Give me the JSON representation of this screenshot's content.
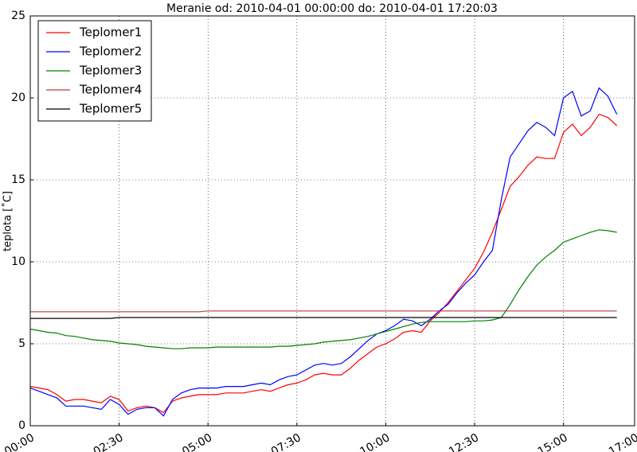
{
  "chart_data": {
    "type": "line",
    "title": "Meranie od: 2010-04-01 00:00:00 do: 2010-04-01 17:20:03",
    "y_label": "teplota [˚C]",
    "x": [
      0,
      0.25,
      0.5,
      0.75,
      1,
      1.25,
      1.5,
      1.75,
      2,
      2.25,
      2.5,
      2.75,
      3,
      3.25,
      3.5,
      3.75,
      4,
      4.25,
      4.5,
      4.75,
      5,
      5.25,
      5.5,
      5.75,
      6,
      6.25,
      6.5,
      6.75,
      7,
      7.25,
      7.5,
      7.75,
      8,
      8.25,
      8.5,
      8.75,
      9,
      9.25,
      9.5,
      9.75,
      10,
      10.25,
      10.5,
      10.75,
      11,
      11.25,
      11.5,
      11.75,
      12,
      12.25,
      12.5,
      12.75,
      13,
      13.25,
      13.5,
      13.75,
      14,
      14.25,
      14.5,
      14.75,
      15,
      15.25,
      15.5,
      15.75,
      16,
      16.25,
      16.5
    ],
    "series": [
      {
        "name": "Teplomer1",
        "color": "#ff0000",
        "values": [
          2.4,
          2.3,
          2.2,
          1.9,
          1.5,
          1.6,
          1.6,
          1.5,
          1.4,
          1.8,
          1.6,
          0.9,
          1.1,
          1.2,
          1.1,
          0.8,
          1.5,
          1.7,
          1.8,
          1.9,
          1.9,
          1.9,
          2.0,
          2.0,
          2.0,
          2.1,
          2.2,
          2.1,
          2.3,
          2.5,
          2.6,
          2.8,
          3.1,
          3.2,
          3.1,
          3.1,
          3.5,
          4.0,
          4.4,
          4.8,
          5.0,
          5.3,
          5.7,
          5.8,
          5.7,
          6.4,
          6.9,
          7.5,
          8.2,
          8.9,
          9.6,
          10.6,
          11.8,
          13.2,
          14.6,
          15.2,
          15.9,
          16.4,
          16.3,
          16.3,
          17.9,
          18.4,
          17.7,
          18.2,
          19.0,
          18.8,
          18.3
        ]
      },
      {
        "name": "Teplomer2",
        "color": "#0000ff",
        "values": [
          2.3,
          2.1,
          1.9,
          1.7,
          1.2,
          1.2,
          1.2,
          1.1,
          1.0,
          1.6,
          1.3,
          0.7,
          1.0,
          1.1,
          1.1,
          0.6,
          1.6,
          2.0,
          2.2,
          2.3,
          2.3,
          2.3,
          2.4,
          2.4,
          2.4,
          2.5,
          2.6,
          2.5,
          2.8,
          3.0,
          3.1,
          3.4,
          3.7,
          3.8,
          3.7,
          3.8,
          4.2,
          4.7,
          5.2,
          5.6,
          5.8,
          6.1,
          6.5,
          6.4,
          6.1,
          6.5,
          7.0,
          7.4,
          8.1,
          8.7,
          9.2,
          10.0,
          10.7,
          13.8,
          16.4,
          17.2,
          18.0,
          18.5,
          18.2,
          17.7,
          20.0,
          20.4,
          18.9,
          19.2,
          20.6,
          20.1,
          19.0
        ]
      },
      {
        "name": "Teplomer3",
        "color": "#008000",
        "values": [
          5.9,
          5.8,
          5.7,
          5.65,
          5.5,
          5.45,
          5.35,
          5.25,
          5.2,
          5.15,
          5.05,
          5.0,
          4.95,
          4.85,
          4.8,
          4.75,
          4.7,
          4.7,
          4.75,
          4.75,
          4.75,
          4.8,
          4.8,
          4.8,
          4.8,
          4.8,
          4.8,
          4.8,
          4.85,
          4.85,
          4.9,
          4.95,
          5.0,
          5.1,
          5.15,
          5.2,
          5.25,
          5.35,
          5.45,
          5.6,
          5.75,
          5.9,
          6.05,
          6.2,
          6.3,
          6.35,
          6.35,
          6.35,
          6.35,
          6.35,
          6.4,
          6.4,
          6.45,
          6.6,
          7.4,
          8.3,
          9.1,
          9.8,
          10.3,
          10.7,
          11.2,
          11.4,
          11.6,
          11.8,
          11.95,
          11.9,
          11.8
        ]
      },
      {
        "name": "Teplomer4",
        "color": "#bf3f3f",
        "values": [
          6.95,
          6.95,
          6.95,
          6.95,
          6.95,
          6.95,
          6.95,
          6.95,
          6.95,
          6.95,
          6.95,
          6.95,
          6.95,
          6.95,
          6.95,
          6.95,
          6.95,
          6.95,
          6.95,
          6.95,
          7.0,
          7.0,
          7.0,
          7.0,
          7.0,
          7.0,
          7.0,
          7.0,
          7.0,
          7.0,
          7.0,
          7.0,
          7.0,
          7.0,
          7.0,
          7.0,
          7.0,
          7.0,
          7.0,
          7.0,
          7.0,
          7.0,
          7.0,
          7.0,
          7.0,
          7.0,
          7.0,
          7.0,
          7.0,
          7.0,
          7.0,
          7.0,
          7.0,
          7.0,
          7.0,
          7.0,
          7.0,
          7.0,
          7.0,
          7.0,
          7.0,
          7.0,
          7.0,
          7.0,
          7.0,
          7.0,
          7.0
        ]
      },
      {
        "name": "Teplomer5",
        "color": "#000000",
        "values": [
          6.55,
          6.55,
          6.55,
          6.55,
          6.55,
          6.55,
          6.55,
          6.55,
          6.55,
          6.55,
          6.6,
          6.6,
          6.6,
          6.6,
          6.6,
          6.6,
          6.6,
          6.6,
          6.6,
          6.6,
          6.6,
          6.6,
          6.6,
          6.6,
          6.6,
          6.6,
          6.6,
          6.6,
          6.6,
          6.6,
          6.6,
          6.6,
          6.6,
          6.6,
          6.6,
          6.6,
          6.6,
          6.6,
          6.6,
          6.6,
          6.6,
          6.6,
          6.6,
          6.6,
          6.6,
          6.6,
          6.6,
          6.6,
          6.6,
          6.6,
          6.6,
          6.6,
          6.6,
          6.6,
          6.6,
          6.6,
          6.6,
          6.6,
          6.6,
          6.6,
          6.6,
          6.6,
          6.6,
          6.6,
          6.6,
          6.6,
          6.6
        ]
      }
    ],
    "xlim": [
      0,
      17
    ],
    "xticks": [
      {
        "value": 0,
        "label": "00:00"
      },
      {
        "value": 2.5,
        "label": "02:30"
      },
      {
        "value": 5,
        "label": "05:00"
      },
      {
        "value": 7.5,
        "label": "07:30"
      },
      {
        "value": 10,
        "label": "10:00"
      },
      {
        "value": 12.5,
        "label": "12:30"
      },
      {
        "value": 15,
        "label": "15:00"
      },
      {
        "value": 17,
        "label": "17:00"
      }
    ],
    "ylim": [
      0,
      25
    ],
    "yticks": [
      0,
      5,
      10,
      15,
      20,
      25
    ],
    "grid": true,
    "legend": "upper left"
  }
}
